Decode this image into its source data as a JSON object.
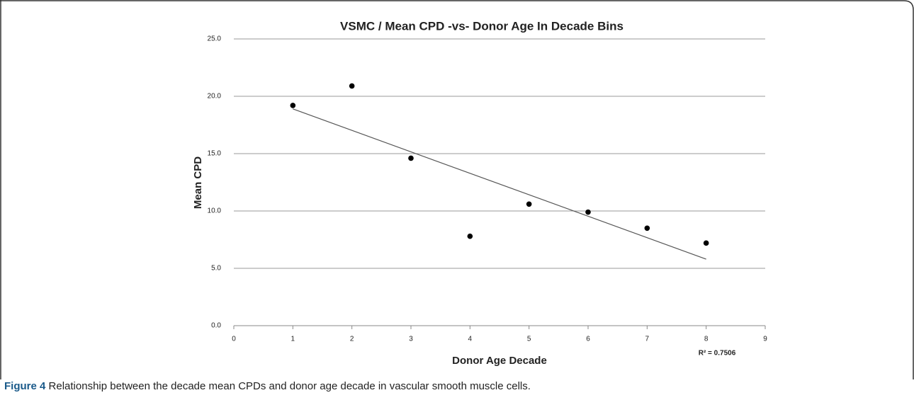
{
  "chart_data": {
    "type": "scatter",
    "title": "VSMC / Mean CPD -vs- Donor Age In Decade  Bins",
    "x_label": "Donor Age Decade",
    "y_label": "Mean CPD",
    "x": [
      1,
      2,
      3,
      4,
      5,
      6,
      7,
      8
    ],
    "values": [
      19.2,
      20.9,
      14.6,
      7.8,
      10.6,
      9.9,
      8.5,
      7.2
    ],
    "color": "#000000",
    "trendline": {
      "x": [
        1,
        8
      ],
      "values": [
        18.9,
        5.8
      ],
      "color": "#555555"
    },
    "annotation": "R² = 0.7506",
    "xlim": [
      0,
      9
    ],
    "xticks": [
      0,
      1,
      2,
      3,
      4,
      5,
      6,
      7,
      8,
      9
    ],
    "ylim": [
      0,
      25
    ],
    "yticks": [
      {
        "value": 0,
        "label": "0.0"
      },
      {
        "value": 5,
        "label": "5.0"
      },
      {
        "value": 10,
        "label": "10.0"
      },
      {
        "value": 15,
        "label": "15.0"
      },
      {
        "value": 20,
        "label": "20.0"
      },
      {
        "value": 25,
        "label": "25.0"
      }
    ],
    "grid": true
  },
  "caption_label": "Figure 4",
  "caption": "Relationship between the decade mean CPDs and donor age decade in vascular smooth muscle cells."
}
